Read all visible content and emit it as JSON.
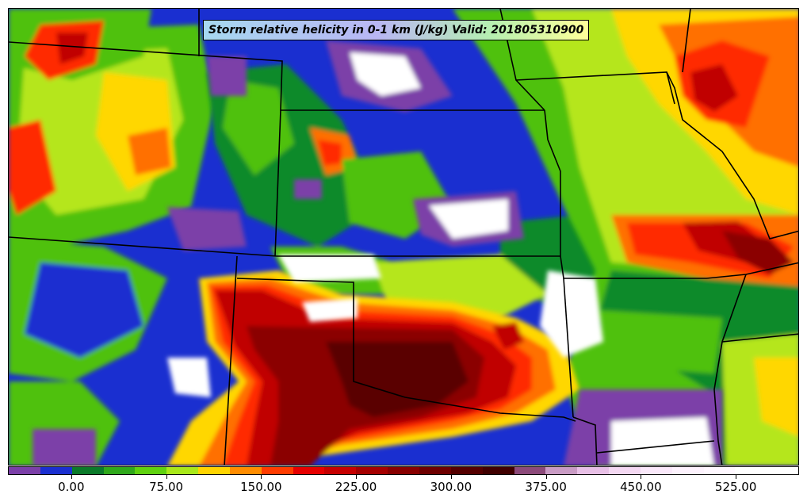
{
  "title": "Storm relative helicity in 0-1 km (J/kg) Valid: 201805310900",
  "map": {
    "variable": "Storm relative helicity 0-1 km",
    "units": "J/kg",
    "valid_time": "201805310900",
    "background_color": "#1a2fd0",
    "region_colors": [
      "#7b3fa8",
      "#1a2fd0",
      "#118a2a",
      "#4fc10e",
      "#b5e61d",
      "#ffd700",
      "#ff6f00",
      "#ff2a00",
      "#c00000",
      "#8b0000",
      "#5a0000",
      "#ffffff"
    ]
  },
  "colorbar": {
    "colors": [
      "#7b3fa8",
      "#1a2fd0",
      "#0b7a2a",
      "#2fa81b",
      "#5fd10f",
      "#a9e81a",
      "#ffd400",
      "#ff8c00",
      "#ff3c00",
      "#e60000",
      "#c60000",
      "#a50000",
      "#880000",
      "#6e0000",
      "#550000",
      "#400000",
      "#8c4a7a",
      "#c99bc4",
      "#e8c0e6",
      "#f4d8f2",
      "#fae8fa",
      "#fdf2fd",
      "#fff8ff",
      "#ffffff",
      "#ffffff"
    ],
    "tick_labels": [
      "0.00",
      "75.00",
      "150.00",
      "225.00",
      "300.00",
      "375.00",
      "450.00",
      "525.00"
    ],
    "tick_values": [
      0,
      75,
      150,
      225,
      300,
      375,
      450,
      525
    ],
    "min": -50,
    "max": 575
  }
}
